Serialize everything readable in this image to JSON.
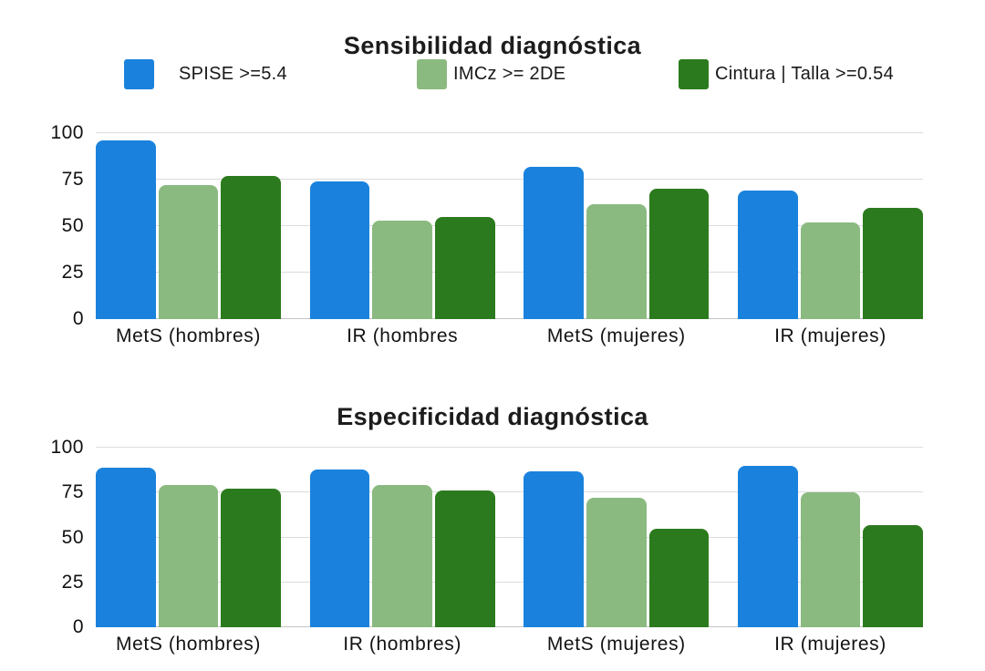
{
  "page": {
    "background": "#ffffff",
    "text_color": "#191919"
  },
  "colors": {
    "spise_blue": "#1A82DD",
    "imcz_light_green": "#8BBA80",
    "cintura_dark_green": "#2C7A1E",
    "gridline": "#dcdcdc",
    "baseline": "#c4c4c4"
  },
  "chart_data": [
    {
      "type": "bar",
      "title": "Sensibilidad diagnóstica",
      "categories": [
        "MetS (hombres)",
        "IR (hombres",
        "MetS (mujeres)",
        "IR (mujeres)"
      ],
      "series": [
        {
          "name": "SPISE >=5.4",
          "color": "#1A82DD",
          "values": [
            96,
            74,
            82,
            69
          ]
        },
        {
          "name": "IMCz >= 2DE",
          "color": "#8BBA80",
          "values": [
            72,
            53,
            62,
            52
          ]
        },
        {
          "name": "Cintura | Talla >=0.54",
          "color": "#2C7A1E",
          "values": [
            77,
            55,
            70,
            60
          ]
        }
      ],
      "ylim": [
        0,
        100
      ],
      "yticks": [
        100,
        75,
        50,
        25,
        0
      ],
      "grid": true,
      "legend_position": "top"
    },
    {
      "type": "bar",
      "title": "Especificidad diagnóstica",
      "categories": [
        "MetS (hombres)",
        "IR (hombres)",
        "MetS (mujeres)",
        "IR (mujeres)"
      ],
      "series": [
        {
          "name": "SPISE >=5.4",
          "color": "#1A82DD",
          "values": [
            89,
            88,
            87,
            90
          ]
        },
        {
          "name": "IMCz >= 2DE",
          "color": "#8BBA80",
          "values": [
            79,
            79,
            72,
            75
          ]
        },
        {
          "name": "Cintura | Talla >=0.54",
          "color": "#2C7A1E",
          "values": [
            77,
            76,
            55,
            57
          ]
        }
      ],
      "ylim": [
        0,
        100
      ],
      "yticks": [
        100,
        75,
        50,
        25,
        0
      ],
      "grid": true,
      "legend_position": "none"
    }
  ]
}
